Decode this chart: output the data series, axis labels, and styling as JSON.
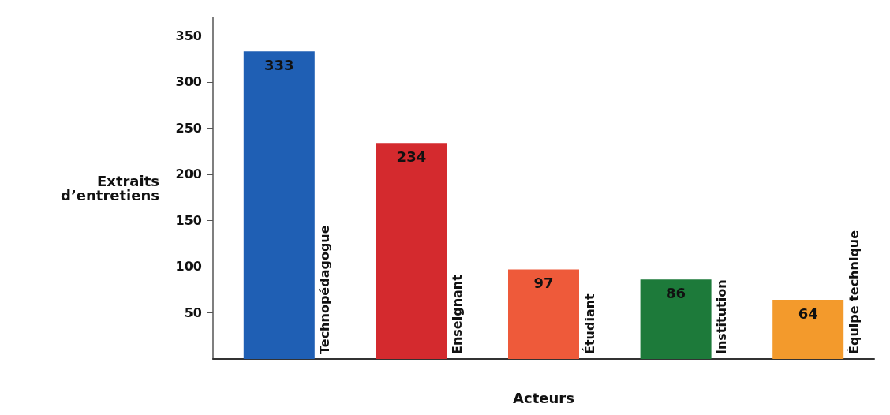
{
  "chart_data": {
    "type": "bar",
    "xlabel": "Acteurs",
    "ylabel": "Extraits\nd’entretiens",
    "categories": [
      "Technopédagogue",
      "Enseignant",
      "Étudiant",
      "Institution",
      "Équipe technique"
    ],
    "values": [
      333,
      234,
      97,
      86,
      64
    ],
    "colors": [
      "#1f5fb4",
      "#d42a2e",
      "#ee5a3a",
      "#1d7a3a",
      "#f39a2c"
    ],
    "ylim": [
      0,
      370
    ],
    "yticks": [
      50,
      100,
      150,
      200,
      250,
      300,
      350
    ],
    "grid": false,
    "data_labels": true
  }
}
